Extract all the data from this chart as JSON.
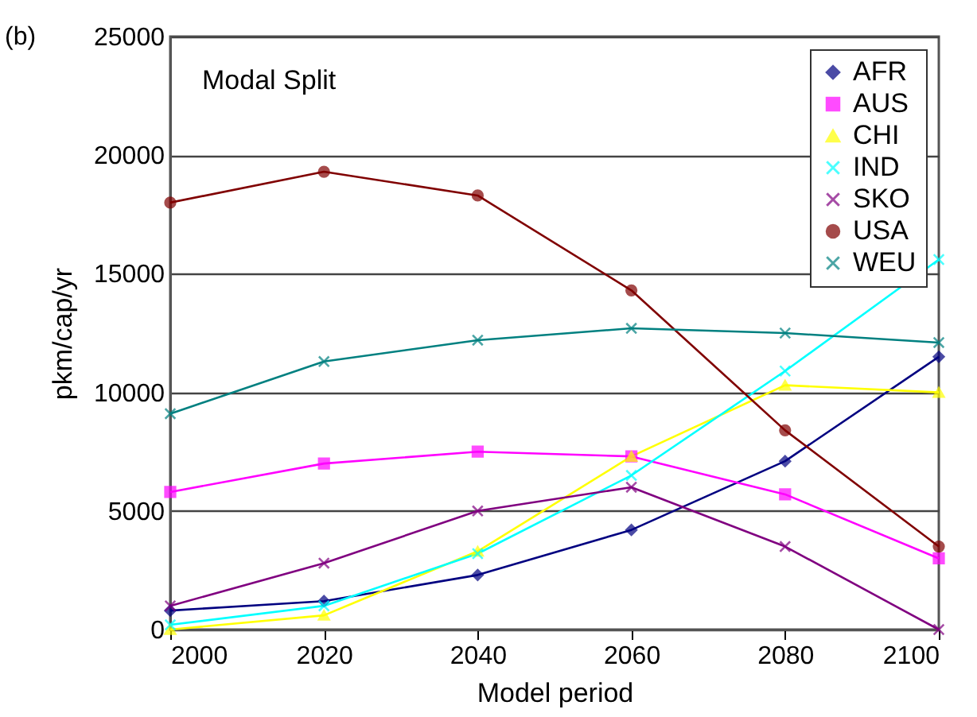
{
  "chart_data": {
    "type": "line",
    "title": "Modal Split",
    "xlabel": "Model period",
    "ylabel": "pkm/cap/yr",
    "annotations": [
      "(b)"
    ],
    "x": [
      2000,
      2020,
      2040,
      2060,
      2080,
      2100
    ],
    "xlim": [
      2000,
      2100
    ],
    "xticks": [
      2000,
      2020,
      2040,
      2060,
      2080,
      2100
    ],
    "ylim": [
      0,
      25000
    ],
    "yticks": [
      0,
      5000,
      10000,
      15000,
      20000,
      25000
    ],
    "grid": "y",
    "legend": "top right",
    "series": [
      {
        "name": "AFR",
        "color": "#000080",
        "marker": "diamond",
        "values": [
          800,
          1200,
          2300,
          4200,
          7100,
          11500
        ]
      },
      {
        "name": "AUS",
        "color": "#ff00ff",
        "marker": "square",
        "values": [
          5800,
          7000,
          7500,
          7300,
          5700,
          3000
        ]
      },
      {
        "name": "CHI",
        "color": "#ffff00",
        "marker": "triangle",
        "values": [
          0,
          600,
          3300,
          7300,
          10300,
          10000
        ]
      },
      {
        "name": "IND",
        "color": "#00ffff",
        "marker": "cross",
        "values": [
          200,
          1000,
          3200,
          6500,
          10900,
          15600
        ]
      },
      {
        "name": "SKO",
        "color": "#800080",
        "marker": "cross",
        "values": [
          1000,
          2800,
          5000,
          6000,
          3500,
          0
        ]
      },
      {
        "name": "USA",
        "color": "#800000",
        "marker": "circle",
        "values": [
          18000,
          19300,
          18300,
          14300,
          8400,
          3500
        ]
      },
      {
        "name": "WEU",
        "color": "#008080",
        "marker": "cross",
        "values": [
          9100,
          11300,
          12200,
          12700,
          12500,
          12100
        ]
      }
    ]
  }
}
